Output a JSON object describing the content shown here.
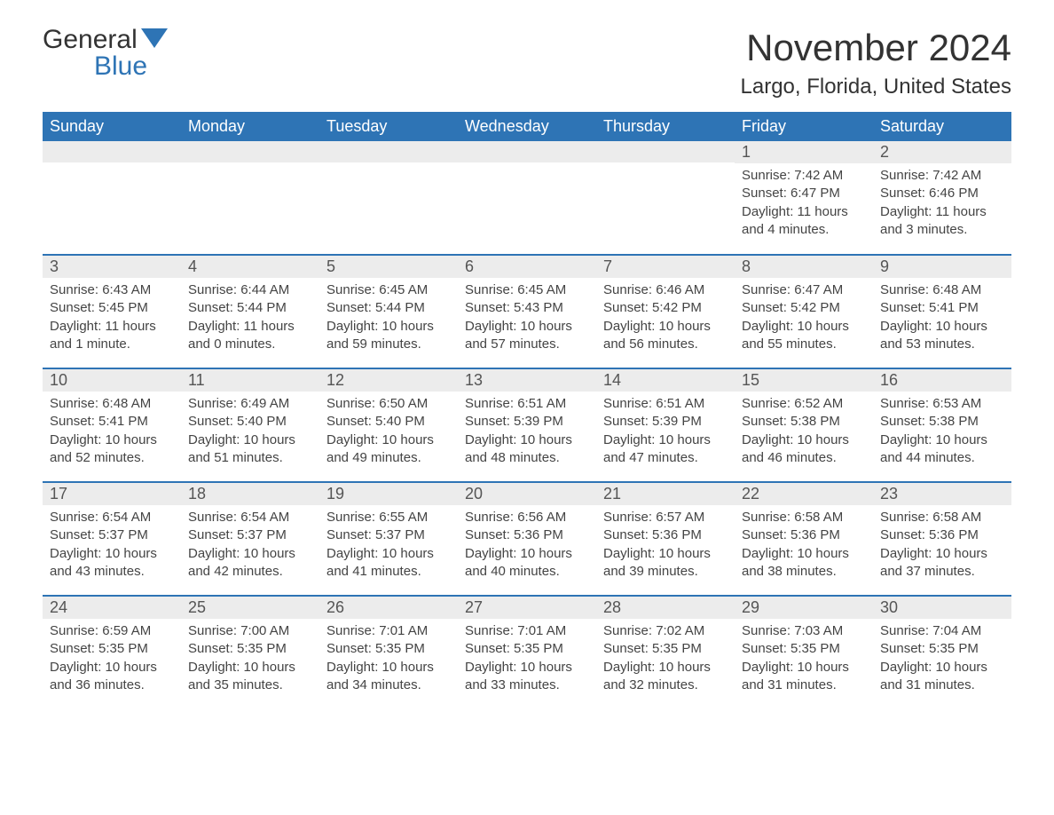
{
  "logo": {
    "text1": "General",
    "text2": "Blue"
  },
  "title": "November 2024",
  "location": "Largo, Florida, United States",
  "styling": {
    "header_bg": "#2e74b5",
    "header_text": "#ffffff",
    "daynum_bg": "#ececec",
    "row_border": "#2e74b5",
    "page_bg": "#ffffff",
    "body_text": "#444444",
    "title_fontsize": 42,
    "location_fontsize": 24,
    "dayheader_fontsize": 18,
    "cell_fontsize": 15,
    "columns": 7
  },
  "day_headers": [
    "Sunday",
    "Monday",
    "Tuesday",
    "Wednesday",
    "Thursday",
    "Friday",
    "Saturday"
  ],
  "weeks": [
    [
      {
        "empty": true
      },
      {
        "empty": true
      },
      {
        "empty": true
      },
      {
        "empty": true
      },
      {
        "empty": true
      },
      {
        "n": "1",
        "sunrise": "Sunrise: 7:42 AM",
        "sunset": "Sunset: 6:47 PM",
        "daylight": "Daylight: 11 hours and 4 minutes."
      },
      {
        "n": "2",
        "sunrise": "Sunrise: 7:42 AM",
        "sunset": "Sunset: 6:46 PM",
        "daylight": "Daylight: 11 hours and 3 minutes."
      }
    ],
    [
      {
        "n": "3",
        "sunrise": "Sunrise: 6:43 AM",
        "sunset": "Sunset: 5:45 PM",
        "daylight": "Daylight: 11 hours and 1 minute."
      },
      {
        "n": "4",
        "sunrise": "Sunrise: 6:44 AM",
        "sunset": "Sunset: 5:44 PM",
        "daylight": "Daylight: 11 hours and 0 minutes."
      },
      {
        "n": "5",
        "sunrise": "Sunrise: 6:45 AM",
        "sunset": "Sunset: 5:44 PM",
        "daylight": "Daylight: 10 hours and 59 minutes."
      },
      {
        "n": "6",
        "sunrise": "Sunrise: 6:45 AM",
        "sunset": "Sunset: 5:43 PM",
        "daylight": "Daylight: 10 hours and 57 minutes."
      },
      {
        "n": "7",
        "sunrise": "Sunrise: 6:46 AM",
        "sunset": "Sunset: 5:42 PM",
        "daylight": "Daylight: 10 hours and 56 minutes."
      },
      {
        "n": "8",
        "sunrise": "Sunrise: 6:47 AM",
        "sunset": "Sunset: 5:42 PM",
        "daylight": "Daylight: 10 hours and 55 minutes."
      },
      {
        "n": "9",
        "sunrise": "Sunrise: 6:48 AM",
        "sunset": "Sunset: 5:41 PM",
        "daylight": "Daylight: 10 hours and 53 minutes."
      }
    ],
    [
      {
        "n": "10",
        "sunrise": "Sunrise: 6:48 AM",
        "sunset": "Sunset: 5:41 PM",
        "daylight": "Daylight: 10 hours and 52 minutes."
      },
      {
        "n": "11",
        "sunrise": "Sunrise: 6:49 AM",
        "sunset": "Sunset: 5:40 PM",
        "daylight": "Daylight: 10 hours and 51 minutes."
      },
      {
        "n": "12",
        "sunrise": "Sunrise: 6:50 AM",
        "sunset": "Sunset: 5:40 PM",
        "daylight": "Daylight: 10 hours and 49 minutes."
      },
      {
        "n": "13",
        "sunrise": "Sunrise: 6:51 AM",
        "sunset": "Sunset: 5:39 PM",
        "daylight": "Daylight: 10 hours and 48 minutes."
      },
      {
        "n": "14",
        "sunrise": "Sunrise: 6:51 AM",
        "sunset": "Sunset: 5:39 PM",
        "daylight": "Daylight: 10 hours and 47 minutes."
      },
      {
        "n": "15",
        "sunrise": "Sunrise: 6:52 AM",
        "sunset": "Sunset: 5:38 PM",
        "daylight": "Daylight: 10 hours and 46 minutes."
      },
      {
        "n": "16",
        "sunrise": "Sunrise: 6:53 AM",
        "sunset": "Sunset: 5:38 PM",
        "daylight": "Daylight: 10 hours and 44 minutes."
      }
    ],
    [
      {
        "n": "17",
        "sunrise": "Sunrise: 6:54 AM",
        "sunset": "Sunset: 5:37 PM",
        "daylight": "Daylight: 10 hours and 43 minutes."
      },
      {
        "n": "18",
        "sunrise": "Sunrise: 6:54 AM",
        "sunset": "Sunset: 5:37 PM",
        "daylight": "Daylight: 10 hours and 42 minutes."
      },
      {
        "n": "19",
        "sunrise": "Sunrise: 6:55 AM",
        "sunset": "Sunset: 5:37 PM",
        "daylight": "Daylight: 10 hours and 41 minutes."
      },
      {
        "n": "20",
        "sunrise": "Sunrise: 6:56 AM",
        "sunset": "Sunset: 5:36 PM",
        "daylight": "Daylight: 10 hours and 40 minutes."
      },
      {
        "n": "21",
        "sunrise": "Sunrise: 6:57 AM",
        "sunset": "Sunset: 5:36 PM",
        "daylight": "Daylight: 10 hours and 39 minutes."
      },
      {
        "n": "22",
        "sunrise": "Sunrise: 6:58 AM",
        "sunset": "Sunset: 5:36 PM",
        "daylight": "Daylight: 10 hours and 38 minutes."
      },
      {
        "n": "23",
        "sunrise": "Sunrise: 6:58 AM",
        "sunset": "Sunset: 5:36 PM",
        "daylight": "Daylight: 10 hours and 37 minutes."
      }
    ],
    [
      {
        "n": "24",
        "sunrise": "Sunrise: 6:59 AM",
        "sunset": "Sunset: 5:35 PM",
        "daylight": "Daylight: 10 hours and 36 minutes."
      },
      {
        "n": "25",
        "sunrise": "Sunrise: 7:00 AM",
        "sunset": "Sunset: 5:35 PM",
        "daylight": "Daylight: 10 hours and 35 minutes."
      },
      {
        "n": "26",
        "sunrise": "Sunrise: 7:01 AM",
        "sunset": "Sunset: 5:35 PM",
        "daylight": "Daylight: 10 hours and 34 minutes."
      },
      {
        "n": "27",
        "sunrise": "Sunrise: 7:01 AM",
        "sunset": "Sunset: 5:35 PM",
        "daylight": "Daylight: 10 hours and 33 minutes."
      },
      {
        "n": "28",
        "sunrise": "Sunrise: 7:02 AM",
        "sunset": "Sunset: 5:35 PM",
        "daylight": "Daylight: 10 hours and 32 minutes."
      },
      {
        "n": "29",
        "sunrise": "Sunrise: 7:03 AM",
        "sunset": "Sunset: 5:35 PM",
        "daylight": "Daylight: 10 hours and 31 minutes."
      },
      {
        "n": "30",
        "sunrise": "Sunrise: 7:04 AM",
        "sunset": "Sunset: 5:35 PM",
        "daylight": "Daylight: 10 hours and 31 minutes."
      }
    ]
  ]
}
